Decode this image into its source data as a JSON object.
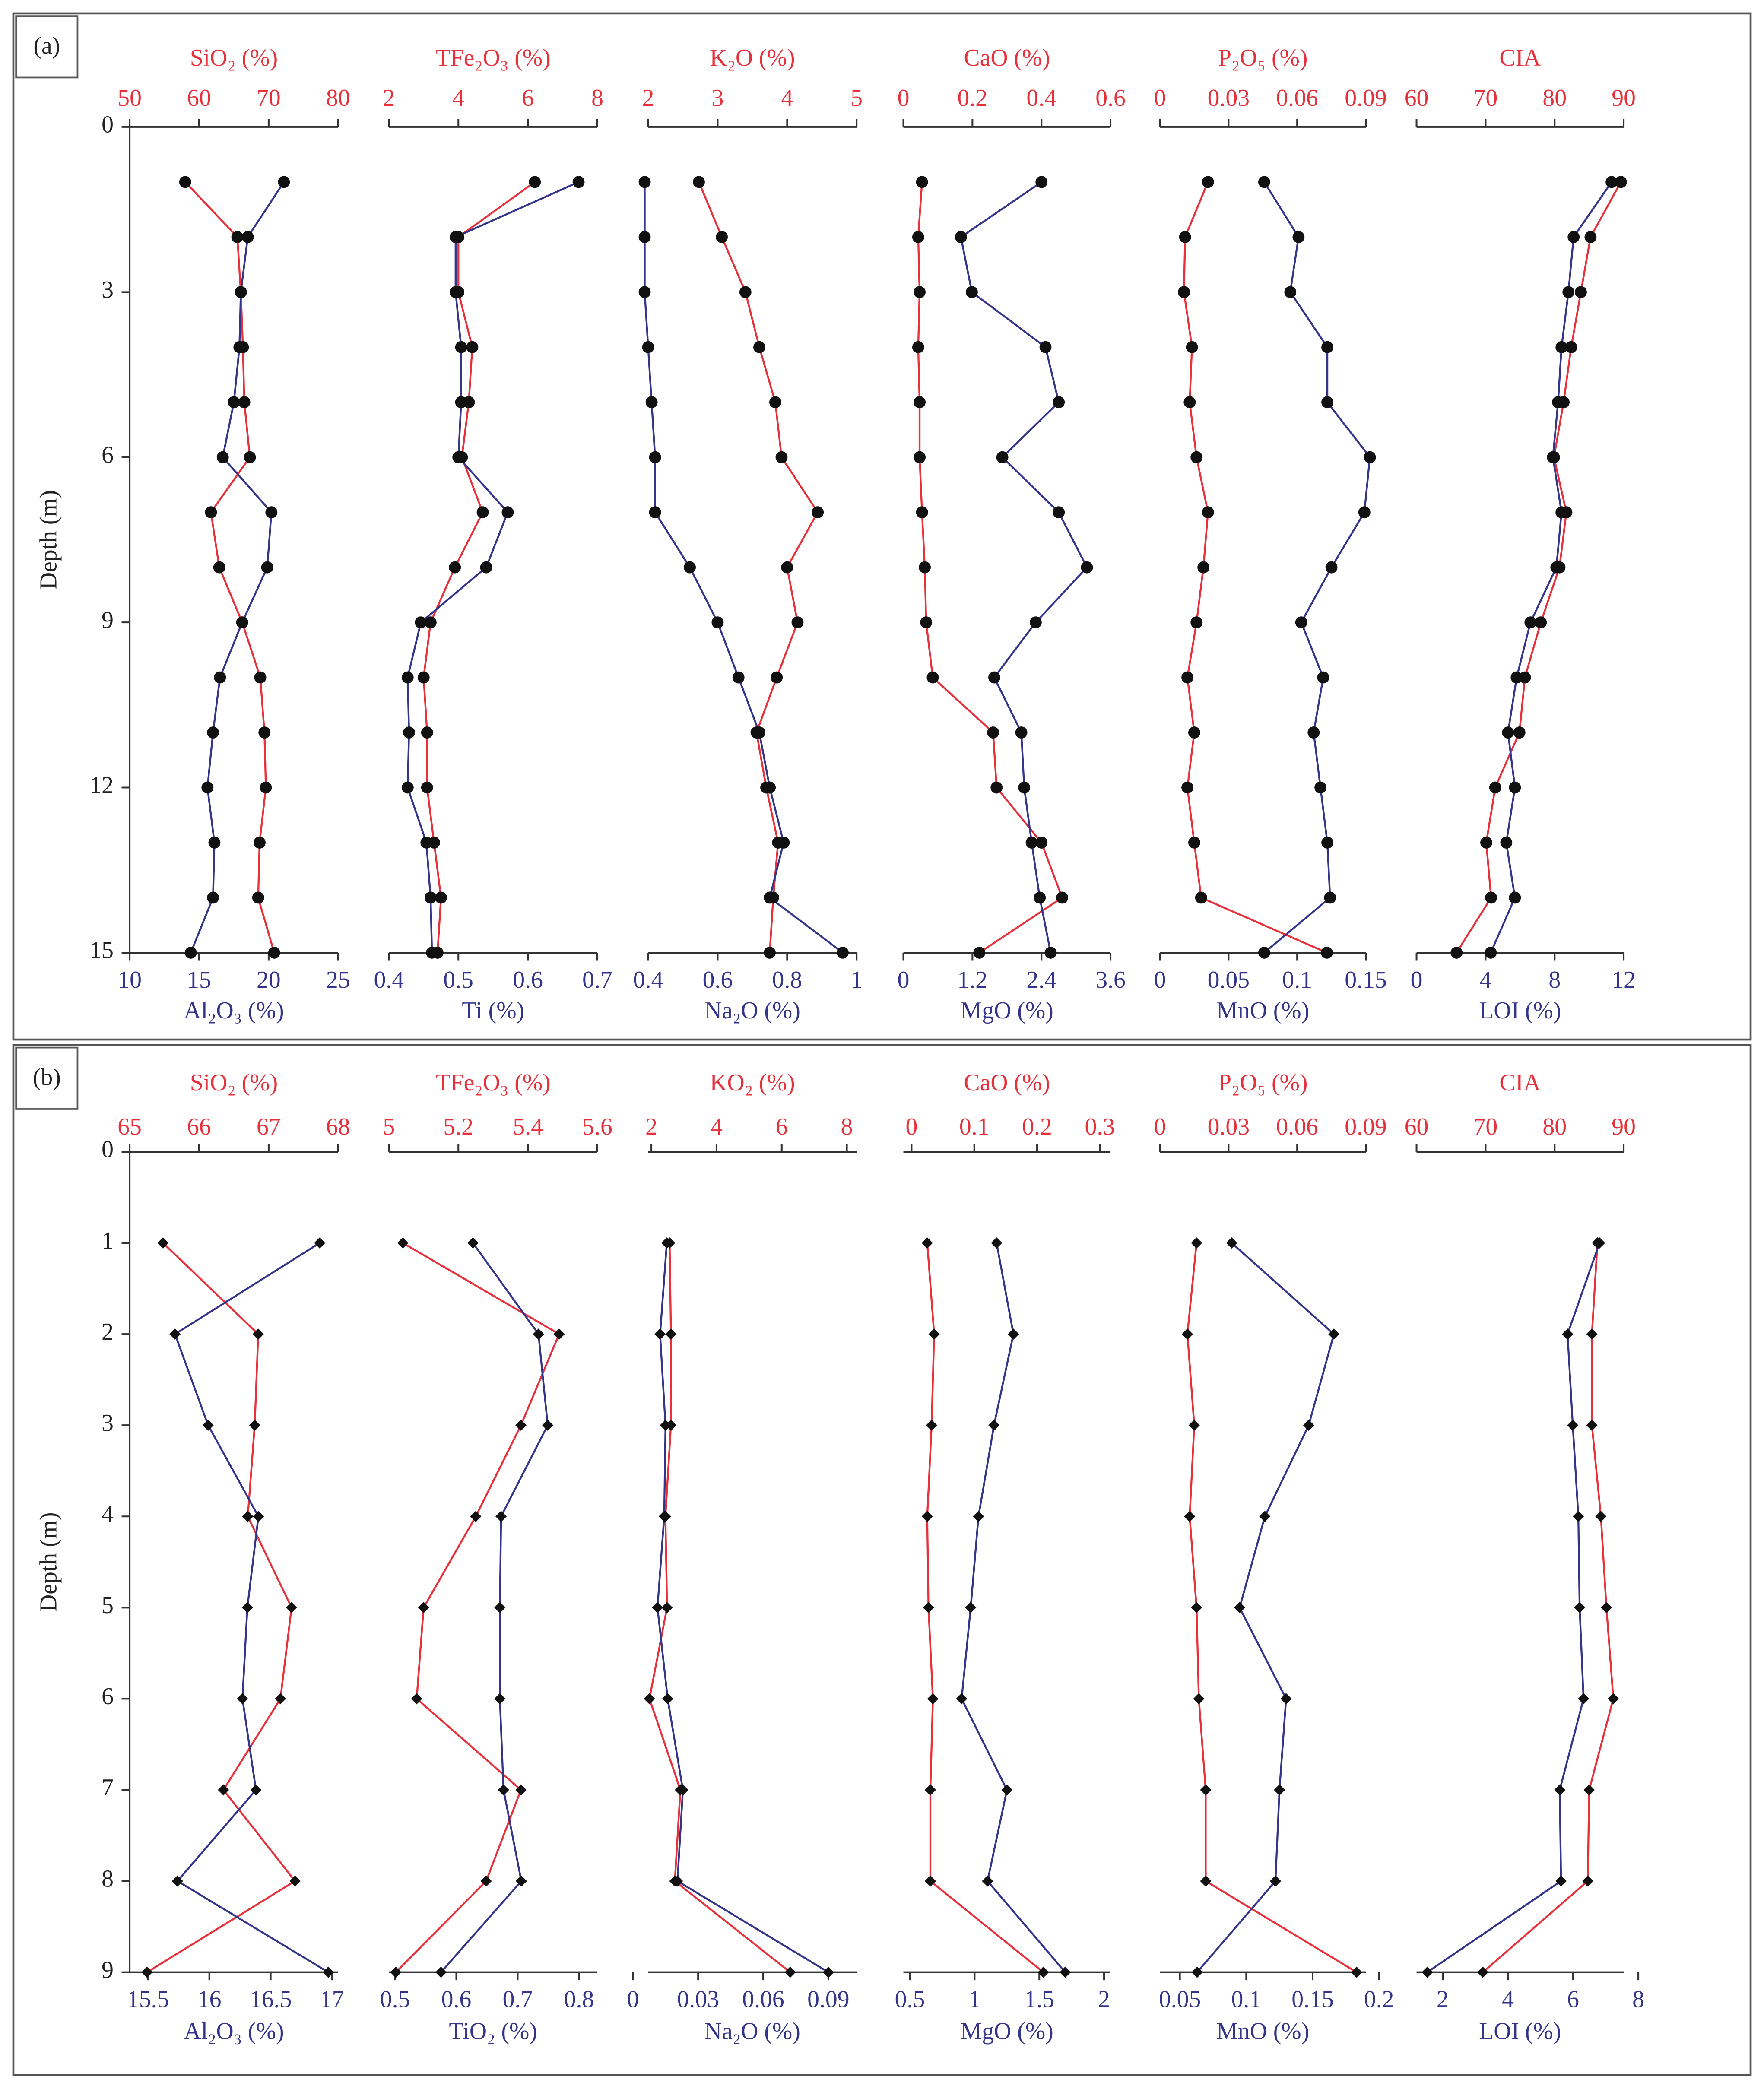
{
  "chart_data": [
    {
      "type": "line",
      "panel_label": "(a)",
      "ylabel": "Depth (m)",
      "marker": "circle",
      "ylim": [
        0,
        15
      ],
      "yticks": [
        0,
        3,
        6,
        9,
        12,
        15
      ],
      "y": [
        1,
        2,
        3,
        4,
        5,
        6,
        7,
        8,
        9,
        10,
        11,
        12,
        13,
        14,
        15
      ],
      "subplots": [
        {
          "x2lim": [
            50,
            80
          ],
          "x2ticks": [
            50,
            60,
            70,
            80
          ],
          "xlim": [
            10,
            25
          ],
          "xticks": [
            10,
            15,
            20,
            25
          ],
          "series": [
            {
              "name": "SiO₂ (%)",
              "color": "#e8303a",
              "axis": "x2",
              "values": [
                58,
                65.5,
                66,
                66.3,
                66.5,
                67.3,
                61.7,
                62.9,
                66.2,
                68.8,
                69.4,
                69.6,
                68.7,
                68.5,
                70.8
              ]
            },
            {
              "name": "Al₂O₃ (%)",
              "color": "#34348a",
              "axis": "x",
              "values": [
                21.1,
                18.5,
                18,
                17.9,
                17.5,
                16.7,
                20.2,
                19.9,
                18.1,
                16.5,
                16,
                15.6,
                16.1,
                16,
                14.4
              ]
            }
          ]
        },
        {
          "x2lim": [
            2,
            8
          ],
          "x2ticks": [
            2,
            4,
            6,
            8
          ],
          "xlim": [
            0.4,
            0.7
          ],
          "xticks": [
            0.4,
            0.5,
            0.6,
            0.7
          ],
          "series": [
            {
              "name": "TFe₂O₃ (%)",
              "color": "#e8303a",
              "axis": "x2",
              "values": [
                6.2,
                4,
                4,
                4.4,
                4.3,
                4.1,
                4.7,
                3.9,
                3.2,
                3,
                3.1,
                3.1,
                3.3,
                3.5,
                3.4
              ]
            },
            {
              "name": "Ti (%)",
              "color": "#34348a",
              "axis": "x",
              "values": [
                0.673,
                0.496,
                0.496,
                0.504,
                0.504,
                0.5,
                0.571,
                0.54,
                0.446,
                0.427,
                0.429,
                0.427,
                0.454,
                0.46,
                0.462
              ]
            }
          ]
        },
        {
          "x2lim": [
            2,
            5
          ],
          "x2ticks": [
            2,
            3,
            4,
            5
          ],
          "xlim": [
            0.4,
            1
          ],
          "xticks": [
            0.4,
            0.6,
            0.8,
            1
          ],
          "series": [
            {
              "name": "K₂O (%)",
              "color": "#e8303a",
              "axis": "x2",
              "values": [
                2.73,
                3.06,
                3.4,
                3.6,
                3.83,
                3.92,
                4.44,
                4,
                4.15,
                3.85,
                3.56,
                3.7,
                3.87,
                3.8,
                3.75
              ]
            },
            {
              "name": "Na₂O (%)",
              "color": "#34348a",
              "axis": "x",
              "values": [
                0.39,
                0.39,
                0.39,
                0.4,
                0.41,
                0.42,
                0.42,
                0.52,
                0.6,
                0.66,
                0.72,
                0.75,
                0.79,
                0.75,
                0.96
              ]
            }
          ]
        },
        {
          "x2lim": [
            0,
            0.6
          ],
          "x2ticks": [
            0,
            0.2,
            0.4,
            0.6
          ],
          "xlim": [
            0,
            3.6
          ],
          "xticks": [
            0,
            1.2,
            2.4,
            3.6
          ],
          "series": [
            {
              "name": "CaO (%)",
              "color": "#e8303a",
              "axis": "x2",
              "values": [
                0.054,
                0.043,
                0.047,
                0.043,
                0.047,
                0.047,
                0.054,
                0.062,
                0.066,
                0.085,
                0.26,
                0.27,
                0.4,
                0.46,
                0.22
              ]
            },
            {
              "name": "MgO (%)",
              "color": "#34348a",
              "axis": "x",
              "values": [
                2.4,
                1,
                1.19,
                2.47,
                2.7,
                1.72,
                2.7,
                3.19,
                2.3,
                1.58,
                2.05,
                2.1,
                2.23,
                2.37,
                2.56
              ]
            }
          ]
        },
        {
          "x2lim": [
            0,
            0.09
          ],
          "x2ticks": [
            0,
            0.03,
            0.06,
            0.09
          ],
          "xlim": [
            0,
            0.15
          ],
          "xticks": [
            0,
            0.05,
            0.1,
            0.15
          ],
          "series": [
            {
              "name": "P₂O₅ (%)",
              "color": "#e8303a",
              "axis": "x2",
              "values": [
                0.021,
                0.011,
                0.0105,
                0.014,
                0.013,
                0.016,
                0.021,
                0.019,
                0.016,
                0.012,
                0.015,
                0.012,
                0.015,
                0.018,
                0.073
              ]
            },
            {
              "name": "MnO (%)",
              "color": "#34348a",
              "axis": "x",
              "values": [
                0.076,
                0.101,
                0.095,
                0.122,
                0.122,
                0.153,
                0.149,
                0.125,
                0.103,
                0.119,
                0.112,
                0.117,
                0.122,
                0.124,
                0.076
              ]
            }
          ]
        },
        {
          "x2lim": [
            60,
            90
          ],
          "x2ticks": [
            60,
            70,
            80,
            90
          ],
          "xlim": [
            0,
            12
          ],
          "xticks": [
            0,
            4,
            8,
            12
          ],
          "series": [
            {
              "name": "CIA",
              "color": "#e8303a",
              "axis": "x2",
              "values": [
                89.6,
                85.2,
                83.8,
                82.4,
                81.3,
                79.9,
                81.7,
                80.7,
                78,
                75.7,
                74.9,
                71.4,
                70.1,
                70.8,
                65.8
              ]
            },
            {
              "name": "LOI (%)",
              "color": "#34348a",
              "axis": "x",
              "values": [
                11.3,
                9.1,
                8.8,
                8.4,
                8.2,
                7.9,
                8.4,
                8.1,
                6.6,
                5.8,
                5.3,
                5.7,
                5.2,
                5.7,
                4.3
              ]
            }
          ]
        }
      ]
    },
    {
      "type": "line",
      "panel_label": "(b)",
      "ylabel": "Depth (m)",
      "marker": "diamond",
      "ylim": [
        0,
        9
      ],
      "yticks": [
        0,
        1,
        2,
        3,
        4,
        5,
        6,
        7,
        8,
        9
      ],
      "y": [
        1,
        2,
        3,
        4,
        5,
        6,
        7,
        8,
        9
      ],
      "subplots": [
        {
          "x2lim": [
            65,
            68
          ],
          "x2ticks": [
            65,
            66,
            67,
            68
          ],
          "xlim": [
            15.35,
            17.05
          ],
          "xticks": [
            15.5,
            16,
            16.5,
            17
          ],
          "series": [
            {
              "name": "SiO₂ (%)",
              "color": "#e8303a",
              "axis": "x2",
              "values": [
                65.48,
                66.85,
                66.8,
                66.7,
                67.33,
                67.17,
                66.35,
                67.38,
                65.25
              ]
            },
            {
              "name": "Al₂O₃ (%)",
              "color": "#34348a",
              "axis": "x",
              "values": [
                16.9,
                15.72,
                15.99,
                16.4,
                16.31,
                16.27,
                16.38,
                15.74,
                16.97
              ]
            }
          ]
        },
        {
          "x2lim": [
            5,
            5.6
          ],
          "x2ticks": [
            5,
            5.2,
            5.4,
            5.6
          ],
          "xlim": [
            0.49,
            0.83
          ],
          "xticks": [
            0.5,
            0.6,
            0.7,
            0.8
          ],
          "series": [
            {
              "name": "TFe₂O₃ (%)",
              "color": "#e8303a",
              "axis": "x2",
              "values": [
                5.04,
                5.49,
                5.38,
                5.25,
                5.1,
                5.08,
                5.38,
                5.28,
                5.02
              ]
            },
            {
              "name": "TiO₂ (%)",
              "color": "#34348a",
              "axis": "x",
              "values": [
                0.627,
                0.734,
                0.749,
                0.673,
                0.671,
                0.671,
                0.677,
                0.706,
                0.575
              ]
            }
          ]
        },
        {
          "x2lim": [
            1.9,
            8.3
          ],
          "x2ticks": [
            2,
            4,
            6,
            8
          ],
          "xlim": [
            0.007,
            0.103
          ],
          "xticks": [
            0,
            0.03,
            0.06,
            0.09
          ],
          "series": [
            {
              "name": "KO₂ (%)",
              "color": "#e8303a",
              "axis": "x2",
              "values": [
                2.56,
                2.6,
                2.6,
                2.43,
                2.48,
                1.94,
                2.89,
                2.72,
                6.26
              ]
            },
            {
              "name": "Na₂O (%)",
              "color": "#34348a",
              "axis": "x",
              "values": [
                0.0156,
                0.0125,
                0.015,
                0.0144,
                0.0113,
                0.016,
                0.023,
                0.0205,
                0.09
              ]
            }
          ]
        },
        {
          "x2lim": [
            -0.013,
            0.317
          ],
          "x2ticks": [
            0,
            0.1,
            0.2,
            0.3
          ],
          "xlim": [
            0.45,
            2.05
          ],
          "xticks": [
            0.5,
            1,
            1.5,
            2
          ],
          "series": [
            {
              "name": "CaO (%)",
              "color": "#e8303a",
              "axis": "x2",
              "values": [
                0.025,
                0.036,
                0.032,
                0.025,
                0.027,
                0.034,
                0.03,
                0.03,
                0.21
              ]
            },
            {
              "name": "MgO (%)",
              "color": "#34348a",
              "axis": "x",
              "values": [
                1.17,
                1.3,
                1.15,
                1.03,
                0.97,
                0.9,
                1.25,
                1.1,
                1.7
              ]
            }
          ]
        },
        {
          "x2lim": [
            0,
            0.09
          ],
          "x2ticks": [
            0,
            0.03,
            0.06,
            0.09
          ],
          "xlim": [
            0.035,
            0.19
          ],
          "xticks": [
            0.05,
            0.1,
            0.15,
            0.2
          ],
          "series": [
            {
              "name": "P₂O₅ (%)",
              "color": "#e8303a",
              "axis": "x2",
              "values": [
                0.016,
                0.012,
                0.015,
                0.013,
                0.016,
                0.017,
                0.02,
                0.02,
                0.086
              ]
            },
            {
              "name": "MnO (%)",
              "color": "#34348a",
              "axis": "x",
              "values": [
                0.089,
                0.166,
                0.147,
                0.114,
                0.095,
                0.13,
                0.125,
                0.122,
                0.063
              ]
            }
          ]
        },
        {
          "x2lim": [
            60,
            90
          ],
          "x2ticks": [
            60,
            70,
            80,
            90
          ],
          "xlim": [
            1.2,
            7.55
          ],
          "xticks": [
            2,
            4,
            6,
            8
          ],
          "series": [
            {
              "name": "CIA",
              "color": "#e8303a",
              "axis": "x2",
              "values": [
                86.2,
                85.4,
                85.4,
                86.7,
                87.5,
                88.5,
                85,
                84.8,
                69.6
              ]
            },
            {
              "name": "LOI (%)",
              "color": "#34348a",
              "axis": "x",
              "values": [
                6.81,
                5.83,
                5.99,
                6.16,
                6.2,
                6.32,
                5.59,
                5.63,
                1.53
              ]
            }
          ]
        }
      ]
    }
  ]
}
